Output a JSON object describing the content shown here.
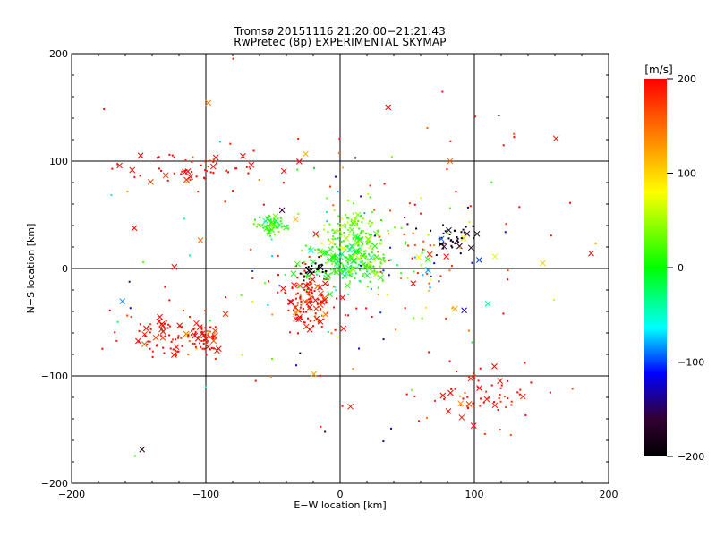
{
  "title": "Tromsø 20151116 21:20:00−21:21:43",
  "subtitle": "RwPretec (8p) EXPERIMENTAL SKYMAP",
  "colorbar": {
    "unit": "[m/s]",
    "ticks": [
      "200",
      "100",
      "0",
      "−100",
      "−200"
    ],
    "colors": [
      "#ff0000",
      "#ffcc00",
      "#ffff00",
      "#00ff00",
      "#00ffff",
      "#0000ff",
      "#000000"
    ]
  },
  "chart_data": {
    "type": "scatter",
    "title": "Tromsø 20151116 21:20:00−21:21:43",
    "subtitle": "RwPretec (8p) EXPERIMENTAL SKYMAP",
    "xlabel": "E−W location [km]",
    "ylabel": "N−S location [km]",
    "xlim": [
      -200,
      200
    ],
    "ylim": [
      -200,
      200
    ],
    "xticks": [
      -200,
      -100,
      0,
      100,
      200
    ],
    "yticks": [
      -200,
      -100,
      0,
      100,
      200
    ],
    "xtick_labels": [
      "−200",
      "−100",
      "0",
      "100",
      "200"
    ],
    "ytick_labels": [
      "−200",
      "−100",
      "0",
      "100",
      "200"
    ],
    "grid_lines": [
      -100,
      0,
      100
    ],
    "color_scale": {
      "label": "[m/s]",
      "min": -200,
      "max": 200
    },
    "clusters": [
      {
        "name": "central-red",
        "x": -22,
        "y": -28,
        "sx": 9,
        "sy": 14,
        "n": 140,
        "v": 200
      },
      {
        "name": "central-cyan",
        "x": 5,
        "y": 5,
        "sx": 18,
        "sy": 12,
        "n": 200,
        "v": 10
      },
      {
        "name": "central-green",
        "x": 10,
        "y": 35,
        "sx": 15,
        "sy": 12,
        "n": 110,
        "v": 40
      },
      {
        "name": "west-cyan",
        "x": -50,
        "y": 40,
        "sx": 6,
        "sy": 4,
        "n": 60,
        "v": 15
      },
      {
        "name": "southwest-red",
        "x": -130,
        "y": -65,
        "sx": 18,
        "sy": 12,
        "n": 80,
        "v": 200
      },
      {
        "name": "southwest-red-2",
        "x": -100,
        "y": -65,
        "sx": 6,
        "sy": 7,
        "n": 60,
        "v": 200
      },
      {
        "name": "northwest-red",
        "x": -110,
        "y": 95,
        "sx": 25,
        "sy": 9,
        "n": 60,
        "v": 200
      },
      {
        "name": "southeast-red",
        "x": 105,
        "y": -120,
        "sx": 20,
        "sy": 14,
        "n": 70,
        "v": 200
      },
      {
        "name": "northeast-black",
        "x": 85,
        "y": 30,
        "sx": 9,
        "sy": 6,
        "n": 40,
        "v": -200
      },
      {
        "name": "east-mixed",
        "x": 60,
        "y": 10,
        "sx": 30,
        "sy": 20,
        "n": 50,
        "v": 60
      },
      {
        "name": "scatter-red",
        "x": 20,
        "y": 20,
        "sx": 80,
        "sy": 70,
        "n": 90,
        "v": 200
      },
      {
        "name": "scatter-mixed",
        "x": 0,
        "y": 0,
        "sx": 90,
        "sy": 80,
        "n": 90,
        "v": 0
      },
      {
        "name": "center-black",
        "x": -20,
        "y": 0,
        "sx": 6,
        "sy": 6,
        "n": 20,
        "v": -200
      }
    ]
  }
}
